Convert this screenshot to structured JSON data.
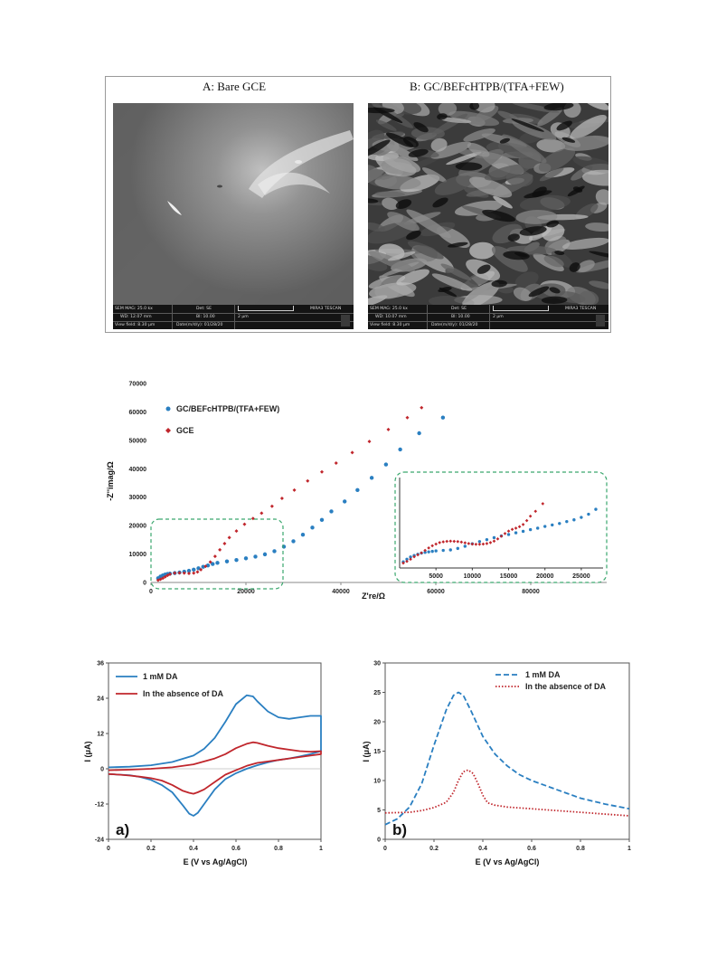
{
  "sem_panel": {
    "left": {
      "title": "A: Bare GCE",
      "info": {
        "sem_mag": "SEM MAG: 25.0 kx",
        "det": "Det: SE",
        "scale": "2 μm",
        "brand": "MIRA3 TESCAN",
        "wd": "WD: 12.07 mm",
        "bi": "BI: 10.00",
        "view_field": "View field: 8.30 μm",
        "date": "Date(m/d/y): 01/28/20"
      }
    },
    "right": {
      "title": "B: GC/BEFcHTPB/(TFA+FEW)",
      "info": {
        "sem_mag": "SEM MAG: 25.0 kx",
        "det": "Det: SE",
        "scale": "2 μm",
        "brand": "MIRA3 TESCAN",
        "wd": "WD: 10.07 mm",
        "bi": "BI: 10.00",
        "view_field": "View field: 8.30 μm",
        "date": "Date(m/d/y): 01/28/20"
      }
    }
  },
  "colors": {
    "blue": "#2a7fc1",
    "red": "#c0262c",
    "inset_border": "#3aa76d",
    "axis": "#555555"
  },
  "chart_data": [
    {
      "id": "nyquist",
      "type": "scatter",
      "xlabel": "Z're/Ω",
      "ylabel": "-Z''imag/Ω",
      "xlim": [
        0,
        96000
      ],
      "ylim": [
        0,
        70000
      ],
      "xticks": [
        0,
        20000,
        40000,
        60000,
        80000
      ],
      "yticks": [
        0,
        10000,
        20000,
        30000,
        40000,
        50000,
        60000,
        70000
      ],
      "legend_position": "top-left",
      "series": [
        {
          "name": "GC/BEFcHTPB/(TFA+FEW)",
          "color": "#2a7fc1",
          "points": [
            [
              1500,
              1500
            ],
            [
              2000,
              2100
            ],
            [
              2500,
              2500
            ],
            [
              3000,
              2800
            ],
            [
              3500,
              3000
            ],
            [
              4000,
              3100
            ],
            [
              5000,
              3300
            ],
            [
              6000,
              3500
            ],
            [
              7000,
              3800
            ],
            [
              8000,
              4100
            ],
            [
              9000,
              4500
            ],
            [
              10000,
              5000
            ],
            [
              11000,
              5500
            ],
            [
              12000,
              6000
            ],
            [
              13000,
              6500
            ],
            [
              14000,
              6900
            ],
            [
              16000,
              7400
            ],
            [
              18000,
              7900
            ],
            [
              20000,
              8500
            ],
            [
              22000,
              9100
            ],
            [
              24000,
              9900
            ],
            [
              26000,
              11000
            ],
            [
              28000,
              12600
            ],
            [
              30000,
              14500
            ],
            [
              32000,
              16800
            ],
            [
              34000,
              19300
            ],
            [
              36000,
              22000
            ],
            [
              38000,
              25000
            ],
            [
              40800,
              28500
            ],
            [
              43500,
              32500
            ],
            [
              46500,
              36800
            ],
            [
              49500,
              41500
            ],
            [
              52500,
              46800
            ],
            [
              56500,
              52500
            ],
            [
              61500,
              58000
            ]
          ]
        },
        {
          "name": "GCE",
          "color": "#c0262c",
          "points": [
            [
              1500,
              800
            ],
            [
              2000,
              1100
            ],
            [
              2500,
              1500
            ],
            [
              3000,
              2000
            ],
            [
              3500,
              2500
            ],
            [
              4000,
              2900
            ],
            [
              5000,
              3300
            ],
            [
              6000,
              3400
            ],
            [
              7000,
              3300
            ],
            [
              8000,
              3200
            ],
            [
              9000,
              3300
            ],
            [
              9800,
              3700
            ],
            [
              10500,
              4500
            ],
            [
              11500,
              5700
            ],
            [
              12500,
              7200
            ],
            [
              13500,
              9200
            ],
            [
              14500,
              11500
            ],
            [
              15500,
              13700
            ],
            [
              16500,
              15800
            ],
            [
              18000,
              18100
            ],
            [
              19700,
              20500
            ],
            [
              21500,
              22500
            ],
            [
              23300,
              24400
            ],
            [
              25500,
              26800
            ],
            [
              27600,
              29600
            ],
            [
              30200,
              32500
            ],
            [
              33000,
              35700
            ],
            [
              36000,
              38900
            ],
            [
              39000,
              42000
            ],
            [
              42400,
              45700
            ],
            [
              46000,
              49600
            ],
            [
              50000,
              53800
            ],
            [
              54000,
              58000
            ],
            [
              57000,
              61500
            ]
          ]
        }
      ]
    },
    {
      "id": "nyquist-inset",
      "type": "scatter",
      "xlim": [
        0,
        28000
      ],
      "ylim": [
        0,
        37000
      ],
      "xticks": [
        5000,
        10000,
        15000,
        20000,
        25000
      ],
      "series": [
        {
          "name": "GC/BEFcHTPB/(TFA+FEW)",
          "color": "#2a7fc1",
          "points": [
            [
              500,
              2500
            ],
            [
              1000,
              3600
            ],
            [
              1500,
              4500
            ],
            [
              2000,
              5100
            ],
            [
              2500,
              5600
            ],
            [
              3000,
              6100
            ],
            [
              3500,
              6400
            ],
            [
              4000,
              6600
            ],
            [
              4500,
              6800
            ],
            [
              5000,
              7000
            ],
            [
              6000,
              7200
            ],
            [
              7000,
              7400
            ],
            [
              8000,
              8000
            ],
            [
              9000,
              8900
            ],
            [
              10000,
              9900
            ],
            [
              11000,
              10800
            ],
            [
              12000,
              11600
            ],
            [
              13000,
              12400
            ],
            [
              14000,
              13100
            ],
            [
              15000,
              13700
            ],
            [
              16000,
              14400
            ],
            [
              17000,
              15000
            ],
            [
              18000,
              15700
            ],
            [
              19000,
              16300
            ],
            [
              20000,
              17000
            ],
            [
              21000,
              17600
            ],
            [
              22000,
              18200
            ],
            [
              23000,
              19000
            ],
            [
              24000,
              19700
            ],
            [
              25000,
              20700
            ],
            [
              26000,
              22000
            ],
            [
              27000,
              24000
            ]
          ]
        },
        {
          "name": "GCE",
          "color": "#c0262c",
          "points": [
            [
              500,
              2000
            ],
            [
              1000,
              2700
            ],
            [
              1500,
              3600
            ],
            [
              2000,
              4600
            ],
            [
              2500,
              5400
            ],
            [
              3000,
              6200
            ],
            [
              3500,
              7200
            ],
            [
              4000,
              8200
            ],
            [
              4500,
              9100
            ],
            [
              5000,
              9800
            ],
            [
              5500,
              10400
            ],
            [
              6000,
              10700
            ],
            [
              6500,
              10900
            ],
            [
              7000,
              11000
            ],
            [
              7500,
              10900
            ],
            [
              8000,
              10800
            ],
            [
              8500,
              10600
            ],
            [
              9000,
              10300
            ],
            [
              9500,
              10000
            ],
            [
              10000,
              9800
            ],
            [
              10500,
              9700
            ],
            [
              11000,
              9700
            ],
            [
              11500,
              9800
            ],
            [
              12000,
              10000
            ],
            [
              12500,
              10400
            ],
            [
              13000,
              11000
            ],
            [
              13500,
              11900
            ],
            [
              14000,
              13000
            ],
            [
              14500,
              14100
            ],
            [
              15000,
              15100
            ],
            [
              15500,
              15800
            ],
            [
              16000,
              16300
            ],
            [
              16500,
              16900
            ],
            [
              17000,
              17800
            ],
            [
              17500,
              19400
            ],
            [
              18000,
              21200
            ],
            [
              18700,
              23200
            ],
            [
              19700,
              26300
            ]
          ]
        }
      ]
    },
    {
      "id": "cv",
      "type": "line",
      "panel_label": "a)",
      "xlabel": "E (V vs Ag/AgCl)",
      "ylabel": "I (μA)",
      "xlim": [
        0,
        1
      ],
      "ylim": [
        -24,
        36
      ],
      "xticks": [
        0,
        0.2,
        0.4,
        0.6,
        0.8,
        1
      ],
      "yticks": [
        -24,
        -12,
        0,
        12,
        24,
        36
      ],
      "legend_position": "top-left",
      "series": [
        {
          "name": "1 mM DA",
          "color": "#2a7fc1",
          "x": [
            0,
            0.1,
            0.2,
            0.3,
            0.4,
            0.45,
            0.5,
            0.55,
            0.6,
            0.65,
            0.68,
            0.7,
            0.75,
            0.8,
            0.85,
            0.9,
            0.95,
            1.0,
            1.0,
            0.95,
            0.9,
            0.85,
            0.8,
            0.75,
            0.7,
            0.65,
            0.6,
            0.55,
            0.5,
            0.45,
            0.42,
            0.4,
            0.38,
            0.35,
            0.3,
            0.25,
            0.2,
            0.15,
            0.1,
            0.05,
            0
          ],
          "y": [
            0.5,
            0.7,
            1.2,
            2.3,
            4.5,
            6.8,
            10.5,
            16.0,
            22.0,
            25.0,
            24.6,
            23.0,
            19.5,
            17.5,
            17.0,
            17.5,
            18.0,
            18.0,
            6.0,
            5.0,
            4.2,
            3.5,
            3.0,
            2.2,
            1.2,
            0,
            -1.5,
            -3.5,
            -7.0,
            -12.0,
            -15.0,
            -16.0,
            -15.3,
            -12.5,
            -8.0,
            -5.5,
            -3.8,
            -2.8,
            -2.2,
            -2.0,
            -1.8
          ]
        },
        {
          "name": "In the absence of DA",
          "color": "#c0262c",
          "x": [
            0,
            0.1,
            0.2,
            0.3,
            0.4,
            0.5,
            0.55,
            0.6,
            0.65,
            0.68,
            0.7,
            0.75,
            0.8,
            0.85,
            0.9,
            0.95,
            1.0,
            1.0,
            0.95,
            0.9,
            0.85,
            0.8,
            0.75,
            0.7,
            0.65,
            0.6,
            0.55,
            0.5,
            0.45,
            0.42,
            0.4,
            0.38,
            0.35,
            0.3,
            0.25,
            0.2,
            0.15,
            0.1,
            0.05,
            0
          ],
          "y": [
            -0.5,
            -0.3,
            0,
            0.5,
            1.5,
            3.5,
            5.0,
            7.0,
            8.5,
            9.0,
            8.8,
            7.8,
            7.0,
            6.5,
            6.0,
            5.8,
            6.0,
            5.0,
            4.5,
            4.0,
            3.5,
            3.0,
            2.5,
            2.0,
            1.0,
            -0.5,
            -2.0,
            -4.5,
            -7.0,
            -8.0,
            -8.5,
            -8.2,
            -7.5,
            -5.5,
            -4.0,
            -3.2,
            -2.7,
            -2.3,
            -2.0,
            -1.8
          ]
        }
      ]
    },
    {
      "id": "dpv",
      "type": "line",
      "panel_label": "b)",
      "xlabel": "E (V vs Ag/AgCl)",
      "ylabel": "I (μA)",
      "xlim": [
        0,
        1
      ],
      "ylim": [
        0,
        30
      ],
      "xticks": [
        0,
        0.2,
        0.4,
        0.6,
        0.8,
        1
      ],
      "yticks": [
        0,
        5,
        10,
        15,
        20,
        25,
        30
      ],
      "legend_position": "top-right",
      "series": [
        {
          "name": "1 mM DA",
          "color": "#2a7fc1",
          "style": "dashed",
          "x": [
            0,
            0.05,
            0.1,
            0.15,
            0.2,
            0.25,
            0.28,
            0.3,
            0.32,
            0.35,
            0.4,
            0.45,
            0.5,
            0.55,
            0.6,
            0.7,
            0.8,
            0.9,
            1.0
          ],
          "y": [
            2.5,
            3.5,
            5.5,
            9.5,
            16.0,
            22.0,
            24.5,
            25.0,
            24.5,
            22.0,
            17.5,
            14.5,
            12.5,
            11.0,
            10.0,
            8.5,
            7.0,
            6.0,
            5.2
          ]
        },
        {
          "name": "In the absence of DA",
          "color": "#c0262c",
          "style": "dotted",
          "x": [
            0,
            0.1,
            0.15,
            0.2,
            0.25,
            0.28,
            0.3,
            0.32,
            0.34,
            0.36,
            0.38,
            0.4,
            0.42,
            0.45,
            0.5,
            0.6,
            0.7,
            0.8,
            0.9,
            1.0
          ],
          "y": [
            4.5,
            4.6,
            4.9,
            5.4,
            6.3,
            8.0,
            10.0,
            11.5,
            11.8,
            11.2,
            9.5,
            7.5,
            6.2,
            5.8,
            5.5,
            5.2,
            4.9,
            4.6,
            4.3,
            4.0
          ]
        }
      ]
    }
  ]
}
